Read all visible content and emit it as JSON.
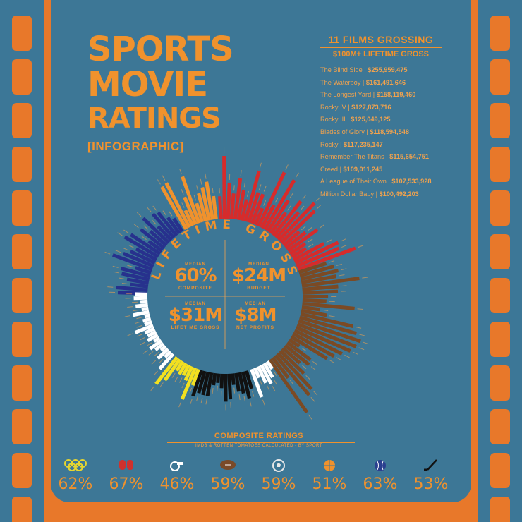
{
  "title": {
    "line1": "SPORTS",
    "line2": "MOVIE",
    "line3": "RATINGS",
    "subtitle": "[INFOGRAPHIC]"
  },
  "films_box": {
    "heading": "11 FILMS GROSSING",
    "subheading": "$100M+ LIFETIME GROSS",
    "films": [
      {
        "name": "The Blind Side",
        "gross": "$255,959,475"
      },
      {
        "name": "The Waterboy",
        "gross": "$161,491,646"
      },
      {
        "name": "The Longest Yard",
        "gross": "$158,119,460"
      },
      {
        "name": "Rocky IV",
        "gross": "$127,873,716"
      },
      {
        "name": "Rocky III",
        "gross": "$125,049,125"
      },
      {
        "name": "Blades of Glory",
        "gross": "$118,594,548"
      },
      {
        "name": "Rocky",
        "gross": "$117,235,147"
      },
      {
        "name": "Remember The Titans",
        "gross": "$115,654,751"
      },
      {
        "name": "Creed",
        "gross": "$109,011,245"
      },
      {
        "name": "A League of Their Own",
        "gross": "$107,533,928"
      },
      {
        "name": "Million Dollar Baby",
        "gross": "$100,492,203"
      }
    ]
  },
  "ring_label": "LIFETIME GROSS",
  "medians": [
    {
      "label": "MEDIAN",
      "value": "60%",
      "caption": "COMPOSITE"
    },
    {
      "label": "MEDIAN",
      "value": "$24M",
      "caption": "BUDGET"
    },
    {
      "label": "MEDIAN",
      "value": "$31M",
      "caption": "LIFETIME GROSS"
    },
    {
      "label": "MEDIAN",
      "value": "$8M",
      "caption": "NET PROFITS"
    }
  ],
  "composite": {
    "title": "COMPOSITE RATINGS",
    "subtitle": "IMDB & ROTTEN TOMATOES CALCULATED - BY SPORT",
    "sports": [
      {
        "icon": "olympic-rings-icon",
        "color": "#e6d630",
        "value": "62%"
      },
      {
        "icon": "boxing-gloves-icon",
        "color": "#d0312d",
        "value": "67%"
      },
      {
        "icon": "whistle-icon",
        "color": "#ffffff",
        "value": "46%"
      },
      {
        "icon": "football-icon",
        "color": "#7a4a28",
        "value": "59%"
      },
      {
        "icon": "soccer-ball-icon",
        "color": "#e8e8e8",
        "value": "59%"
      },
      {
        "icon": "basketball-icon",
        "color": "#f0922d",
        "value": "51%"
      },
      {
        "icon": "baseball-icon",
        "color": "#2a3f8f",
        "value": "63%"
      },
      {
        "icon": "hockey-stick-icon",
        "color": "#111111",
        "value": "53%"
      }
    ]
  },
  "colors": {
    "background": "#3d7796",
    "frame": "#e8782a",
    "accent": "#f0922d",
    "boxing": "#d62b2b",
    "football": "#7b4a24",
    "soccer": "#ffffff",
    "hockey": "#111111",
    "olympic": "#f2e020",
    "basketball": "#f0922d",
    "baseball": "#27318d",
    "whistle": "#ffffff"
  }
}
